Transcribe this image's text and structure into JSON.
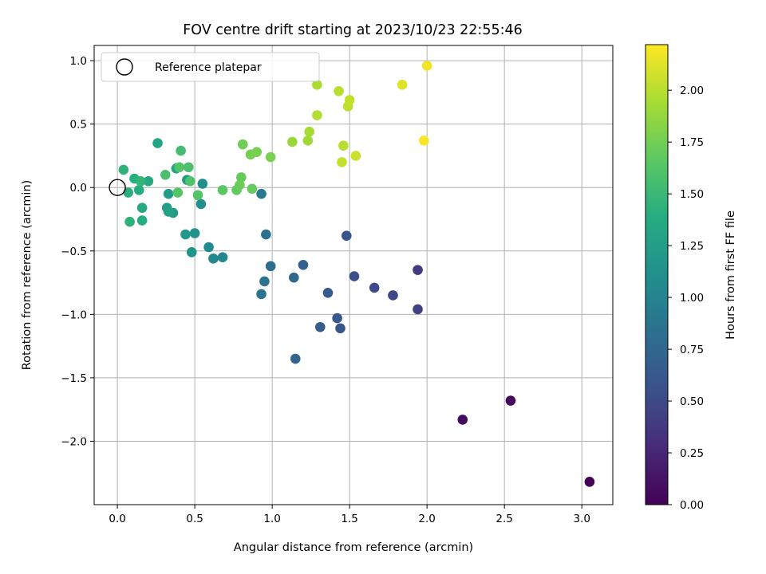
{
  "chart_data": {
    "type": "scatter",
    "title": "FOV centre drift starting at 2023/10/23 22:55:46",
    "xlabel": "Angular distance from reference (arcmin)",
    "ylabel": "Rotation from reference (arcmin)",
    "xlim": [
      -0.15,
      3.2
    ],
    "ylim": [
      -2.5,
      1.12
    ],
    "x_ticks": [
      0.0,
      0.5,
      1.0,
      1.5,
      2.0,
      2.5,
      3.0
    ],
    "x_tick_labels": [
      "0.0",
      "0.5",
      "1.0",
      "1.5",
      "2.0",
      "2.5",
      "3.0"
    ],
    "y_ticks": [
      -2.0,
      -1.5,
      -1.0,
      -0.5,
      0.0,
      0.5,
      1.0
    ],
    "y_tick_labels": [
      "−2.0",
      "−1.5",
      "−1.0",
      "−0.5",
      "0.0",
      "0.5",
      "1.0"
    ],
    "grid": true,
    "legend": {
      "placement": "top-left",
      "entries": [
        "Reference platepar"
      ]
    },
    "reference_point": {
      "name": "Reference platepar",
      "x": 0.0,
      "y": 0.0
    },
    "colorbar": {
      "label": "Hours from first FF file",
      "colormap": "viridis",
      "range": [
        0.0,
        2.22
      ],
      "ticks": [
        0.0,
        0.25,
        0.5,
        0.75,
        1.0,
        1.25,
        1.5,
        1.75,
        2.0
      ],
      "tick_labels": [
        "0.00",
        "0.25",
        "0.50",
        "0.75",
        "1.00",
        "1.25",
        "1.50",
        "1.75",
        "2.00"
      ]
    },
    "points": [
      {
        "x": 3.05,
        "y": -2.32,
        "h": 0.02
      },
      {
        "x": 2.54,
        "y": -1.68,
        "h": 0.05
      },
      {
        "x": 2.23,
        "y": -1.83,
        "h": 0.08
      },
      {
        "x": 1.94,
        "y": -0.65,
        "h": 0.4
      },
      {
        "x": 1.94,
        "y": -0.96,
        "h": 0.45
      },
      {
        "x": 1.78,
        "y": -0.85,
        "h": 0.48
      },
      {
        "x": 1.66,
        "y": -0.79,
        "h": 0.52
      },
      {
        "x": 1.53,
        "y": -0.7,
        "h": 0.55
      },
      {
        "x": 1.48,
        "y": -0.38,
        "h": 0.57
      },
      {
        "x": 1.44,
        "y": -1.11,
        "h": 0.6
      },
      {
        "x": 1.42,
        "y": -1.03,
        "h": 0.62
      },
      {
        "x": 1.36,
        "y": -0.83,
        "h": 0.64
      },
      {
        "x": 1.31,
        "y": -1.1,
        "h": 0.66
      },
      {
        "x": 1.2,
        "y": -0.61,
        "h": 0.7
      },
      {
        "x": 1.15,
        "y": -1.35,
        "h": 0.73
      },
      {
        "x": 1.14,
        "y": -0.71,
        "h": 0.76
      },
      {
        "x": 0.99,
        "y": -0.62,
        "h": 0.8
      },
      {
        "x": 0.96,
        "y": -0.37,
        "h": 0.83
      },
      {
        "x": 0.95,
        "y": -0.74,
        "h": 0.86
      },
      {
        "x": 0.93,
        "y": -0.84,
        "h": 0.88
      },
      {
        "x": 0.93,
        "y": -0.05,
        "h": 0.9
      },
      {
        "x": 0.68,
        "y": -0.55,
        "h": 1.02
      },
      {
        "x": 0.62,
        "y": -0.56,
        "h": 1.05
      },
      {
        "x": 0.59,
        "y": -0.47,
        "h": 1.07
      },
      {
        "x": 0.54,
        "y": -0.13,
        "h": 1.09
      },
      {
        "x": 0.55,
        "y": 0.03,
        "h": 1.11
      },
      {
        "x": 0.5,
        "y": -0.36,
        "h": 1.13
      },
      {
        "x": 0.48,
        "y": -0.51,
        "h": 1.15
      },
      {
        "x": 0.44,
        "y": -0.37,
        "h": 1.18
      },
      {
        "x": 0.45,
        "y": 0.06,
        "h": 1.2
      },
      {
        "x": 0.36,
        "y": -0.2,
        "h": 1.22
      },
      {
        "x": 0.33,
        "y": -0.05,
        "h": 1.24
      },
      {
        "x": 0.32,
        "y": -0.16,
        "h": 1.26
      },
      {
        "x": 0.33,
        "y": -0.19,
        "h": 1.28
      },
      {
        "x": 0.38,
        "y": 0.15,
        "h": 1.3
      },
      {
        "x": 0.26,
        "y": 0.35,
        "h": 1.32
      },
      {
        "x": 0.2,
        "y": 0.05,
        "h": 1.35
      },
      {
        "x": 0.16,
        "y": -0.16,
        "h": 1.36
      },
      {
        "x": 0.16,
        "y": -0.26,
        "h": 1.38
      },
      {
        "x": 0.14,
        "y": -0.02,
        "h": 1.39
      },
      {
        "x": 0.11,
        "y": 0.07,
        "h": 1.41
      },
      {
        "x": 0.07,
        "y": -0.04,
        "h": 1.42
      },
      {
        "x": 0.08,
        "y": -0.27,
        "h": 1.44
      },
      {
        "x": 0.04,
        "y": 0.14,
        "h": 1.45
      },
      {
        "x": 0.15,
        "y": 0.05,
        "h": 1.47
      },
      {
        "x": 0.41,
        "y": 0.29,
        "h": 1.55
      },
      {
        "x": 0.46,
        "y": 0.16,
        "h": 1.58
      },
      {
        "x": 0.31,
        "y": 0.1,
        "h": 1.58
      },
      {
        "x": 0.47,
        "y": 0.05,
        "h": 1.6
      },
      {
        "x": 0.4,
        "y": 0.16,
        "h": 1.62
      },
      {
        "x": 0.52,
        "y": -0.06,
        "h": 1.62
      },
      {
        "x": 0.39,
        "y": -0.04,
        "h": 1.63
      },
      {
        "x": 0.68,
        "y": -0.02,
        "h": 1.66
      },
      {
        "x": 0.77,
        "y": -0.02,
        "h": 1.68
      },
      {
        "x": 0.8,
        "y": 0.08,
        "h": 1.7
      },
      {
        "x": 0.87,
        "y": -0.01,
        "h": 1.7
      },
      {
        "x": 0.79,
        "y": 0.02,
        "h": 1.72
      },
      {
        "x": 0.81,
        "y": 0.34,
        "h": 1.74
      },
      {
        "x": 0.86,
        "y": 0.26,
        "h": 1.76
      },
      {
        "x": 0.9,
        "y": 0.28,
        "h": 1.77
      },
      {
        "x": 0.99,
        "y": 0.24,
        "h": 1.78
      },
      {
        "x": 1.13,
        "y": 0.36,
        "h": 1.88
      },
      {
        "x": 1.23,
        "y": 0.37,
        "h": 1.92
      },
      {
        "x": 1.24,
        "y": 0.44,
        "h": 1.94
      },
      {
        "x": 1.29,
        "y": 0.81,
        "h": 1.96
      },
      {
        "x": 1.29,
        "y": 0.57,
        "h": 1.98
      },
      {
        "x": 1.43,
        "y": 0.76,
        "h": 2.0
      },
      {
        "x": 1.46,
        "y": 0.33,
        "h": 2.0
      },
      {
        "x": 1.49,
        "y": 0.64,
        "h": 2.02
      },
      {
        "x": 1.5,
        "y": 0.69,
        "h": 2.03
      },
      {
        "x": 1.45,
        "y": 0.2,
        "h": 2.04
      },
      {
        "x": 1.54,
        "y": 0.25,
        "h": 2.06
      },
      {
        "x": 1.84,
        "y": 0.81,
        "h": 2.12
      },
      {
        "x": 2.0,
        "y": 0.96,
        "h": 2.18
      },
      {
        "x": 1.98,
        "y": 0.37,
        "h": 2.2
      }
    ]
  }
}
